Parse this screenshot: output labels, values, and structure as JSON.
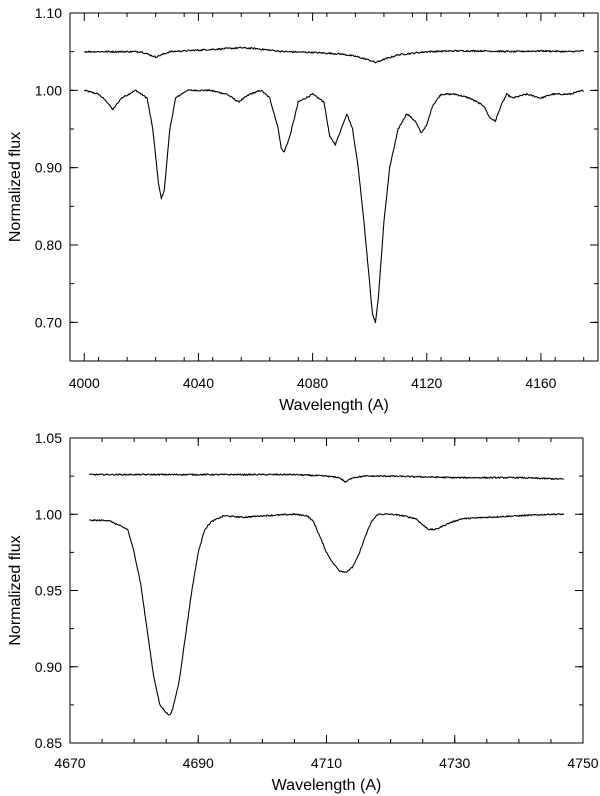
{
  "chart_data": [
    {
      "type": "line",
      "title": "",
      "xlabel": "Wavelength (A)",
      "ylabel": "Normalized flux",
      "xlim": [
        3995,
        4180
      ],
      "ylim": [
        0.65,
        1.1
      ],
      "xticks": [
        4000,
        4040,
        4080,
        4120,
        4160
      ],
      "xtick_labels": [
        "4000",
        "4040",
        "4080",
        "4120",
        "4160"
      ],
      "xminor_step": 10,
      "yticks": [
        0.7,
        0.8,
        0.9,
        1.0,
        1.1
      ],
      "ytick_labels": [
        "0.70",
        "0.80",
        "0.90",
        "1.00",
        "1.10"
      ],
      "yminor_step": 0.05,
      "grid": false,
      "legend": "none",
      "line_color": "#000000",
      "series": [
        {
          "x": [
            4000,
            4005,
            4008,
            4010,
            4013,
            4018,
            4022,
            4024,
            4026,
            4027,
            4028,
            4030,
            4032,
            4036,
            4044,
            4050,
            4054,
            4058,
            4062,
            4065,
            4068,
            4069,
            4070,
            4072,
            4075,
            4080,
            4084,
            4086,
            4088,
            4090,
            4092,
            4094,
            4096,
            4098,
            4100,
            4101,
            4102,
            4103,
            4105,
            4107,
            4110,
            4113,
            4116,
            4118,
            4120,
            4122,
            4125,
            4130,
            4135,
            4140,
            4142,
            4144,
            4146,
            4148,
            4150,
            4155,
            4160,
            4164,
            4170,
            4175
          ],
          "y": [
            1.0,
            0.995,
            0.985,
            0.975,
            0.99,
            1.0,
            0.99,
            0.95,
            0.88,
            0.86,
            0.87,
            0.95,
            0.99,
            1.0,
            1.0,
            0.995,
            0.985,
            0.995,
            1.0,
            0.99,
            0.95,
            0.925,
            0.92,
            0.94,
            0.985,
            0.995,
            0.985,
            0.94,
            0.93,
            0.95,
            0.97,
            0.95,
            0.9,
            0.83,
            0.75,
            0.71,
            0.7,
            0.73,
            0.83,
            0.9,
            0.95,
            0.97,
            0.96,
            0.945,
            0.955,
            0.98,
            0.995,
            0.995,
            0.99,
            0.98,
            0.965,
            0.96,
            0.98,
            0.995,
            0.99,
            0.995,
            0.99,
            0.995,
            0.995,
            1.0
          ]
        },
        {
          "x": [
            4000,
            4010,
            4020,
            4025,
            4030,
            4040,
            4050,
            4055,
            4060,
            4070,
            4080,
            4090,
            4095,
            4100,
            4102,
            4105,
            4110,
            4120,
            4130,
            4140,
            4150,
            4160,
            4170,
            4175
          ],
          "y": [
            1.05,
            1.05,
            1.05,
            1.043,
            1.05,
            1.052,
            1.054,
            1.055,
            1.054,
            1.05,
            1.049,
            1.047,
            1.044,
            1.039,
            1.036,
            1.04,
            1.046,
            1.05,
            1.051,
            1.051,
            1.05,
            1.051,
            1.05,
            1.051
          ]
        }
      ]
    },
    {
      "type": "line",
      "title": "",
      "xlabel": "Wavelength (A)",
      "ylabel": "Normalized flux",
      "xlim": [
        4670,
        4750
      ],
      "ylim": [
        0.85,
        1.05
      ],
      "xticks": [
        4670,
        4690,
        4710,
        4730,
        4750
      ],
      "xtick_labels": [
        "4670",
        "4690",
        "4710",
        "4730",
        "4750"
      ],
      "xminor_step": 5,
      "yticks": [
        0.85,
        0.9,
        0.95,
        1.0,
        1.05
      ],
      "ytick_labels": [
        "0.85",
        "0.90",
        "0.95",
        "1.00",
        "1.05"
      ],
      "yminor_step": 0.025,
      "grid": false,
      "legend": "none",
      "line_color": "#000000",
      "series": [
        {
          "x": [
            4673,
            4676,
            4679,
            4680,
            4681,
            4682,
            4683,
            4684,
            4685,
            4685.5,
            4686,
            4687,
            4688,
            4689,
            4690,
            4691,
            4692,
            4694,
            4697,
            4700,
            4705,
            4707,
            4708,
            4709,
            4710,
            4711,
            4712,
            4713,
            4714,
            4715,
            4716,
            4717,
            4718,
            4720,
            4722,
            4724,
            4725,
            4726,
            4727,
            4729,
            4731,
            4735,
            4740,
            4745,
            4747
          ],
          "y": [
            0.996,
            0.996,
            0.99,
            0.975,
            0.955,
            0.925,
            0.895,
            0.875,
            0.87,
            0.868,
            0.872,
            0.89,
            0.92,
            0.95,
            0.975,
            0.99,
            0.995,
            0.999,
            0.998,
            0.999,
            1.0,
            0.999,
            0.995,
            0.985,
            0.975,
            0.968,
            0.963,
            0.962,
            0.965,
            0.973,
            0.985,
            0.995,
            1.0,
            1.0,
            0.999,
            0.997,
            0.993,
            0.99,
            0.99,
            0.994,
            0.997,
            0.998,
            0.999,
            1.0,
            1.0
          ]
        },
        {
          "x": [
            4673,
            4680,
            4690,
            4700,
            4705,
            4710,
            4712,
            4713,
            4714,
            4716,
            4720,
            4730,
            4740,
            4747
          ],
          "y": [
            1.026,
            1.026,
            1.026,
            1.026,
            1.026,
            1.025,
            1.024,
            1.021,
            1.024,
            1.025,
            1.025,
            1.024,
            1.024,
            1.023
          ]
        }
      ]
    }
  ]
}
